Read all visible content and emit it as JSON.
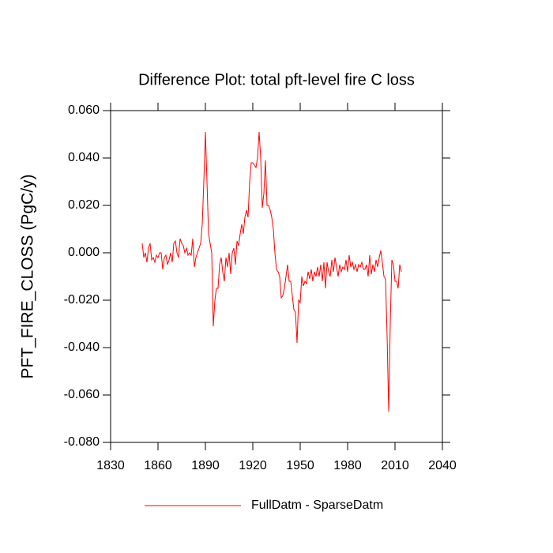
{
  "chart_data": {
    "type": "line",
    "title": "Difference Plot: total pft-level fire C loss",
    "y_label": "PFT_FIRE_CLOSS  (PgC/y)",
    "legend": "bottom",
    "xlim": [
      1830,
      2040
    ],
    "xticks": [
      1830,
      1860,
      1890,
      1920,
      1950,
      1980,
      2010,
      2040
    ],
    "ylim": [
      -0.08,
      0.06
    ],
    "yticks": [
      {
        "value": -0.08,
        "label": "-0.080"
      },
      {
        "value": -0.06,
        "label": "-0.060"
      },
      {
        "value": -0.04,
        "label": "-0.040"
      },
      {
        "value": -0.02,
        "label": "-0.020"
      },
      {
        "value": 0,
        "label": "0.000"
      },
      {
        "value": 0.02,
        "label": "0.020"
      },
      {
        "value": 0.04,
        "label": "0.040"
      },
      {
        "value": 0.06,
        "label": "0.060"
      }
    ],
    "x": [
      1850,
      1851,
      1852,
      1853,
      1854,
      1855,
      1856,
      1857,
      1858,
      1859,
      1860,
      1861,
      1862,
      1863,
      1864,
      1865,
      1866,
      1867,
      1868,
      1869,
      1870,
      1871,
      1872,
      1873,
      1874,
      1875,
      1876,
      1877,
      1878,
      1879,
      1880,
      1881,
      1882,
      1883,
      1884,
      1885,
      1886,
      1887,
      1888,
      1889,
      1890,
      1891,
      1892,
      1893,
      1894,
      1895,
      1896,
      1897,
      1898,
      1899,
      1900,
      1901,
      1902,
      1903,
      1904,
      1905,
      1906,
      1907,
      1908,
      1909,
      1910,
      1911,
      1912,
      1913,
      1914,
      1915,
      1916,
      1917,
      1918,
      1919,
      1920,
      1921,
      1922,
      1923,
      1924,
      1925,
      1926,
      1927,
      1928,
      1929,
      1930,
      1931,
      1932,
      1933,
      1934,
      1935,
      1936,
      1937,
      1938,
      1939,
      1940,
      1941,
      1942,
      1943,
      1944,
      1945,
      1946,
      1947,
      1948,
      1949,
      1950,
      1951,
      1952,
      1953,
      1954,
      1955,
      1956,
      1957,
      1958,
      1959,
      1960,
      1961,
      1962,
      1963,
      1964,
      1965,
      1966,
      1967,
      1968,
      1969,
      1970,
      1971,
      1972,
      1973,
      1974,
      1975,
      1976,
      1977,
      1978,
      1979,
      1980,
      1981,
      1982,
      1983,
      1984,
      1985,
      1986,
      1987,
      1988,
      1989,
      1990,
      1991,
      1992,
      1993,
      1994,
      1995,
      1996,
      1997,
      1998,
      1999,
      2000,
      2001,
      2002,
      2003,
      2004,
      2005,
      2006,
      2007,
      2008,
      2009,
      2010,
      2011,
      2012,
      2013,
      2014
    ],
    "series": [
      {
        "name": "FullDatm - SparseDatm",
        "color": "#ff0000",
        "values": [
          0.004,
          -0.002,
          0.0,
          -0.004,
          0.002,
          0.004,
          -0.003,
          -0.002,
          -0.004,
          -0.001,
          -0.002,
          0.0,
          0.0,
          -0.007,
          -0.002,
          -0.001,
          -0.005,
          -0.003,
          0.0,
          -0.004,
          0.004,
          0.005,
          0.0,
          -0.002,
          0.006,
          0.004,
          0.003,
          0.0,
          0.002,
          -0.001,
          0.0,
          -0.001,
          0.006,
          -0.006,
          -0.002,
          0.0,
          0.002,
          0.004,
          0.012,
          0.03,
          0.051,
          0.03,
          0.008,
          0.004,
          0.0,
          -0.031,
          -0.02,
          -0.015,
          -0.015,
          -0.005,
          -0.002,
          -0.008,
          -0.012,
          -0.002,
          -0.006,
          0.0,
          -0.009,
          0.0,
          0.002,
          -0.005,
          0.005,
          0.003,
          0.008,
          0.012,
          0.008,
          0.015,
          0.018,
          0.015,
          0.03,
          0.038,
          0.038,
          0.037,
          0.036,
          0.04,
          0.051,
          0.04,
          0.019,
          0.025,
          0.039,
          0.02,
          0.02,
          0.018,
          0.015,
          0.01,
          0.0,
          -0.007,
          -0.008,
          -0.01,
          -0.019,
          -0.018,
          -0.015,
          -0.01,
          -0.005,
          -0.012,
          -0.012,
          -0.018,
          -0.024,
          -0.025,
          -0.038,
          -0.02,
          -0.021,
          -0.01,
          -0.014,
          -0.012,
          -0.013,
          -0.008,
          -0.011,
          -0.007,
          -0.012,
          -0.008,
          -0.01,
          -0.006,
          -0.01,
          -0.005,
          -0.012,
          -0.004,
          -0.015,
          -0.004,
          -0.008,
          -0.01,
          -0.003,
          -0.008,
          -0.002,
          -0.006,
          -0.01,
          -0.005,
          -0.008,
          -0.006,
          -0.007,
          -0.003,
          -0.008,
          -0.001,
          -0.006,
          -0.004,
          -0.007,
          -0.005,
          -0.008,
          -0.005,
          -0.006,
          -0.004,
          -0.007,
          -0.007,
          -0.005,
          -0.01,
          -0.001,
          -0.009,
          -0.005,
          -0.008,
          -0.003,
          -0.006,
          -0.002,
          0.001,
          -0.004,
          -0.01,
          -0.011,
          -0.035,
          -0.067,
          -0.03,
          -0.003,
          -0.005,
          -0.012,
          -0.012,
          -0.015,
          -0.005,
          -0.008
        ]
      }
    ]
  }
}
